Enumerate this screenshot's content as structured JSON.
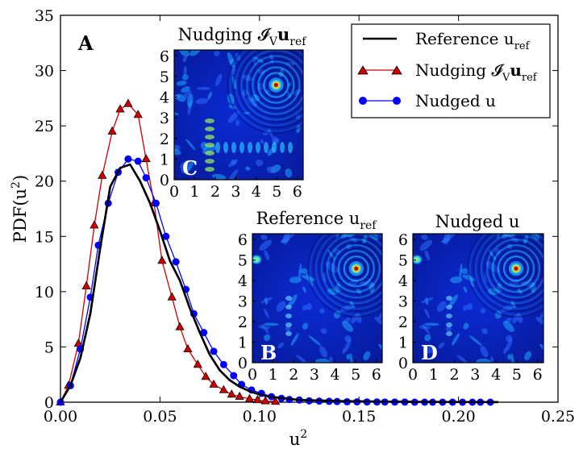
{
  "chart_data": {
    "type": "line",
    "panel_label": "A",
    "xlabel": "u²",
    "ylabel": "PDF(u²)",
    "xlim": [
      0.0,
      0.25
    ],
    "ylim": [
      0,
      35
    ],
    "xticks": [
      "0.00",
      "0.05",
      "0.10",
      "0.15",
      "0.20",
      "0.25"
    ],
    "yticks": [
      "0",
      "5",
      "10",
      "15",
      "20",
      "25",
      "30",
      "35"
    ],
    "legend_position": "top-right",
    "series": [
      {
        "name": "Reference u_ref",
        "legend_label": "Reference u",
        "legend_sub": "ref",
        "color": "#000000",
        "marker": "none",
        "x": [
          0.0,
          0.005,
          0.01,
          0.015,
          0.02,
          0.025,
          0.03,
          0.035,
          0.04,
          0.045,
          0.05,
          0.055,
          0.06,
          0.065,
          0.07,
          0.075,
          0.08,
          0.085,
          0.09,
          0.095,
          0.1,
          0.105,
          0.11,
          0.12,
          0.13,
          0.14,
          0.15,
          0.16,
          0.18,
          0.2,
          0.22
        ],
        "y": [
          0.0,
          1.5,
          4.0,
          8.0,
          14.0,
          19.5,
          21.2,
          21.5,
          20.0,
          18.0,
          15.5,
          12.8,
          11.0,
          8.5,
          6.3,
          4.3,
          2.9,
          2.0,
          1.4,
          1.0,
          0.7,
          0.5,
          0.4,
          0.2,
          0.15,
          0.1,
          0.08,
          0.05,
          0.03,
          0.02,
          0.01
        ]
      },
      {
        "name": "Nudging I_V u_ref",
        "legend_label": "Nudging 𝓘",
        "legend_sub": "V",
        "legend_tail": "u",
        "legend_tail_sub": "ref",
        "color": "#cc0000",
        "marker": "triangle",
        "x": [
          0.0,
          0.004,
          0.009,
          0.013,
          0.017,
          0.021,
          0.026,
          0.03,
          0.034,
          0.039,
          0.043,
          0.047,
          0.051,
          0.056,
          0.06,
          0.064,
          0.069,
          0.073,
          0.077,
          0.082,
          0.086,
          0.09,
          0.095,
          0.099,
          0.103,
          0.108
        ],
        "y": [
          0.0,
          1.5,
          5.3,
          10.5,
          16.0,
          20.5,
          24.5,
          26.5,
          27.0,
          26.0,
          22.0,
          18.0,
          12.8,
          9.5,
          6.8,
          4.8,
          3.4,
          2.3,
          1.6,
          1.1,
          0.7,
          0.5,
          0.3,
          0.2,
          0.1,
          0.05
        ]
      },
      {
        "name": "Nudged u",
        "legend_label": "Nudged u",
        "color": "#0000ff",
        "marker": "circle",
        "x": [
          0.0,
          0.005,
          0.01,
          0.015,
          0.019,
          0.024,
          0.029,
          0.034,
          0.039,
          0.043,
          0.048,
          0.053,
          0.058,
          0.063,
          0.067,
          0.072,
          0.077,
          0.082,
          0.087,
          0.091,
          0.096,
          0.101,
          0.106,
          0.111,
          0.115,
          0.12,
          0.125,
          0.13,
          0.135,
          0.139,
          0.144,
          0.149,
          0.154,
          0.159,
          0.163,
          0.168,
          0.173,
          0.178,
          0.183,
          0.187,
          0.192,
          0.197,
          0.202,
          0.207,
          0.211,
          0.216
        ],
        "y": [
          0.0,
          1.5,
          4.8,
          9.5,
          14.2,
          18.0,
          20.8,
          22.0,
          21.8,
          20.3,
          18.0,
          15.0,
          12.7,
          10.2,
          8.0,
          6.3,
          4.6,
          3.4,
          2.4,
          1.6,
          1.1,
          0.8,
          0.5,
          0.35,
          0.25,
          0.2,
          0.12,
          0.1,
          0.08,
          0.06,
          0.04,
          0.03,
          0.02,
          0.02,
          0.01,
          0.01,
          0.01,
          0.0,
          0.0,
          0.0,
          0.0,
          0.0,
          0.0,
          0.0,
          0.0,
          0.0
        ]
      }
    ],
    "insets": [
      {
        "id": "C",
        "title_main": "Nudging 𝓘",
        "title_sub": "V",
        "title_tail": "u",
        "title_tail_sub": "ref",
        "ticks": [
          "0",
          "1",
          "2",
          "3",
          "4",
          "5",
          "6"
        ]
      },
      {
        "id": "B",
        "title_main": "Reference u",
        "title_sub": "ref",
        "ticks": [
          "0",
          "1",
          "2",
          "3",
          "4",
          "5",
          "6"
        ]
      },
      {
        "id": "D",
        "title_main": "Nudged u",
        "ticks": [
          "0",
          "1",
          "2",
          "3",
          "4",
          "5",
          "6"
        ]
      }
    ]
  }
}
